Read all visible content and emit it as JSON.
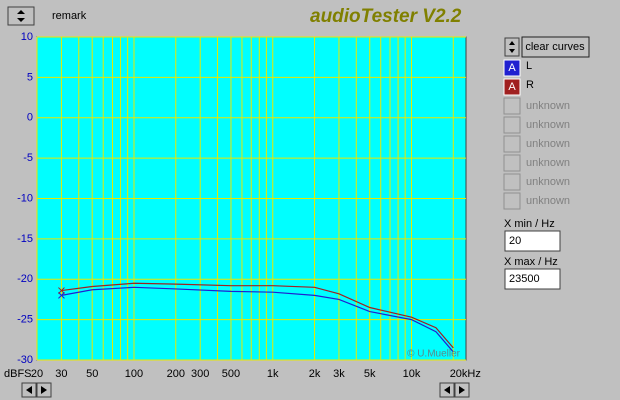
{
  "ui": {
    "remark": "remark",
    "app_title": "audioTester V2.2",
    "clear_button": "clear curves",
    "legend_badge": "A",
    "unused_channels": [
      "unknown",
      "unknown",
      "unknown",
      "unknown",
      "unknown",
      "unknown"
    ],
    "xmin_label": "X min / Hz",
    "xmax_label": "X max / Hz",
    "watermark": "© U.Mueller"
  },
  "chart_data": {
    "type": "line",
    "y_unit": "dBFS",
    "x_log": true,
    "grid": true,
    "x": [
      30,
      50,
      100,
      200,
      500,
      1000,
      2000,
      3000,
      5000,
      10000,
      15000,
      20000
    ],
    "series": [
      {
        "name": "L",
        "color": "#2020d0",
        "values": [
          -22,
          -21.3,
          -21,
          -21.2,
          -21.5,
          -21.6,
          -22,
          -22.5,
          -24,
          -25,
          -26.5,
          -29
        ]
      },
      {
        "name": "R",
        "color": "#a02020",
        "values": [
          -21.4,
          -20.9,
          -20.5,
          -20.6,
          -20.8,
          -20.8,
          -21,
          -21.8,
          -23.5,
          -24.7,
          -26,
          -28.5
        ]
      }
    ],
    "xlim": [
      20,
      23500
    ],
    "xticks": [
      20,
      30,
      50,
      100,
      200,
      300,
      500,
      {
        "value": 1000,
        "label": "1k"
      },
      {
        "value": 2000,
        "label": "2k"
      },
      {
        "value": 3000,
        "label": "3k"
      },
      {
        "value": 5000,
        "label": "5k"
      },
      {
        "value": 10000,
        "label": "10k"
      },
      {
        "value": 20000,
        "label": "20kHz"
      }
    ],
    "x_minor_ticks": [
      40,
      60,
      70,
      80,
      90,
      400,
      600,
      700,
      800,
      900,
      4000,
      6000,
      7000,
      8000,
      9000
    ],
    "ylim": [
      -30,
      10
    ],
    "yticks": [
      10,
      5,
      0,
      -5,
      -10,
      -15,
      -20,
      -25,
      -30
    ]
  }
}
